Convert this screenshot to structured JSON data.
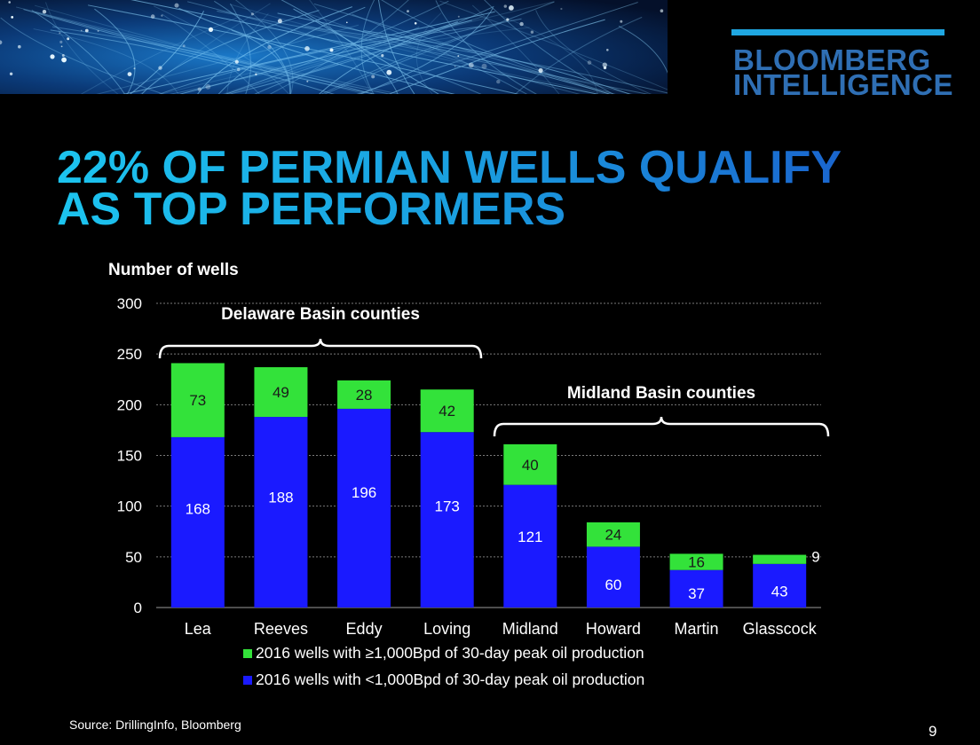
{
  "header": {
    "brand_line1": "BLOOMBERG",
    "brand_line2": "INTELLIGENCE",
    "title_line1": "22% OF PERMIAN WELLS QUALIFY",
    "title_line2": "AS TOP PERFORMERS"
  },
  "footer": {
    "source": "Source: DrillingInfo, Bloomberg",
    "page_number": "9"
  },
  "colors": {
    "top_performers": "#33e23a",
    "others": "#1a1aff",
    "title_start": "#1cc4ef",
    "title_end": "#1a56c9",
    "brand": "#2f6fb4"
  },
  "chart_data": {
    "type": "bar",
    "stacked": true,
    "ylabel": "Number of wells",
    "ylim": [
      0,
      300
    ],
    "yticks": [
      0,
      50,
      100,
      150,
      200,
      250,
      300
    ],
    "grid": true,
    "categories": [
      "Lea",
      "Reeves",
      "Eddy",
      "Loving",
      "Midland",
      "Howard",
      "Martin",
      "Glasscock"
    ],
    "series": [
      {
        "name": "2016 wells with <1,000Bpd of 30-day peak oil production",
        "color": "#1a1aff",
        "values": [
          168,
          188,
          196,
          173,
          121,
          60,
          37,
          43
        ]
      },
      {
        "name": "2016 wells with ≥1,000Bpd of 30-day peak oil production",
        "color": "#33e23a",
        "values": [
          73,
          49,
          28,
          42,
          40,
          24,
          16,
          9
        ]
      }
    ],
    "legend_position": "bottom",
    "annotations": [
      {
        "text": "Delaware Basin counties",
        "categories": [
          "Lea",
          "Reeves",
          "Eddy",
          "Loving"
        ]
      },
      {
        "text": "Midland Basin counties",
        "categories": [
          "Midland",
          "Howard",
          "Martin",
          "Glasscock"
        ]
      }
    ]
  }
}
